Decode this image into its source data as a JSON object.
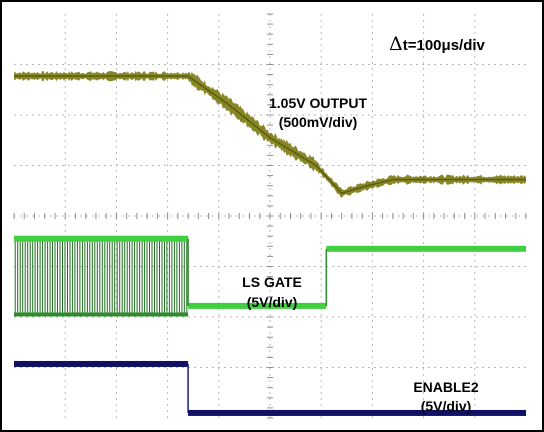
{
  "colors": {
    "background": "#ffffff",
    "border": "#000000",
    "grid": "#b8b8b8",
    "ticks": "#909090",
    "output_trace": "#7a7a10",
    "output_trace_core": "#5a5a08",
    "ls_gate_trace": "#2e8b2e",
    "ls_gate_dense": "#1f6f1f",
    "ls_gate_band": "#3fcf3f",
    "enable2_trace": "#1a1a80",
    "enable2_band": "#101066",
    "text": "#000000"
  },
  "chart_data": {
    "type": "line",
    "title": "",
    "time_scale_label": "Δt=100μs/div",
    "time_scale_prefix": "Δ",
    "time_scale_rest": "t=100μs/div",
    "xlabel": "",
    "ylabel": "",
    "x_unit": "div",
    "y_unit": "div",
    "grid": true,
    "xlim": [
      0,
      10
    ],
    "ylim": [
      0,
      8
    ],
    "series": [
      {
        "name": "1.05V OUTPUT",
        "scale": "(500mV/div)",
        "x": [
          0,
          3.4,
          4.2,
          5.0,
          5.9,
          6.4,
          6.9,
          7.4,
          10
        ],
        "y": [
          6.77,
          6.77,
          6.2,
          5.55,
          5.0,
          4.45,
          4.6,
          4.72,
          4.72
        ]
      },
      {
        "name": "LS GATE",
        "scale": "(5V/div)",
        "x": [
          0,
          3.4,
          3.4,
          6.1,
          6.1,
          10
        ],
        "y": [
          3.55,
          3.55,
          2.22,
          2.22,
          3.35,
          3.35
        ],
        "switching_region": [
          0,
          3.4
        ],
        "switching_low": 2.05
      },
      {
        "name": "ENABLE2",
        "scale": "(5V/div)",
        "x": [
          0,
          3.4,
          3.4,
          10
        ],
        "y": [
          1.07,
          1.07,
          0.1,
          0.1
        ]
      }
    ]
  }
}
